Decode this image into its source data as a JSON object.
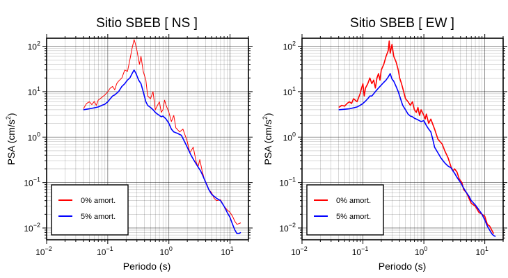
{
  "chart_data": [
    {
      "type": "line",
      "title": "Sitio SBEB [ NS ]",
      "xlabel": "Periodo (s)",
      "ylabel_main": "PSA (cm/s",
      "ylabel_sup": "2",
      "ylabel_tail": ")",
      "xscale": "log",
      "yscale": "log",
      "xlim": [
        0.01,
        20
      ],
      "ylim": [
        0.0055,
        150
      ],
      "grid": true,
      "legend_position": "bottom-left",
      "xticks": [
        {
          "v": 0.01,
          "base": "10",
          "exp": "−2"
        },
        {
          "v": 0.1,
          "base": "10",
          "exp": "−1"
        },
        {
          "v": 1,
          "base": "10",
          "exp": "0"
        },
        {
          "v": 10,
          "base": "10",
          "exp": "1"
        }
      ],
      "yticks": [
        {
          "v": 0.01,
          "base": "10",
          "exp": "−2"
        },
        {
          "v": 0.1,
          "base": "10",
          "exp": "−1"
        },
        {
          "v": 1,
          "base": "10",
          "exp": "0"
        },
        {
          "v": 10,
          "base": "10",
          "exp": "1"
        },
        {
          "v": 100,
          "base": "10",
          "exp": "2"
        }
      ],
      "series": [
        {
          "name": "0% amort.",
          "color": "#ff0000",
          "width": 1.0,
          "points": [
            [
              0.04,
              4.2
            ],
            [
              0.045,
              5.5
            ],
            [
              0.05,
              6
            ],
            [
              0.055,
              5.2
            ],
            [
              0.06,
              6.1
            ],
            [
              0.065,
              5
            ],
            [
              0.07,
              6.5
            ],
            [
              0.08,
              7.5
            ],
            [
              0.09,
              8.5
            ],
            [
              0.1,
              10
            ],
            [
              0.11,
              12
            ],
            [
              0.12,
              13
            ],
            [
              0.13,
              11
            ],
            [
              0.14,
              15
            ],
            [
              0.15,
              17
            ],
            [
              0.17,
              20
            ],
            [
              0.19,
              30
            ],
            [
              0.21,
              28
            ],
            [
              0.23,
              50
            ],
            [
              0.25,
              90
            ],
            [
              0.27,
              140
            ],
            [
              0.28,
              120
            ],
            [
              0.3,
              80
            ],
            [
              0.33,
              40
            ],
            [
              0.35,
              60
            ],
            [
              0.38,
              28
            ],
            [
              0.42,
              18
            ],
            [
              0.45,
              8
            ],
            [
              0.5,
              7
            ],
            [
              0.55,
              10
            ],
            [
              0.6,
              4
            ],
            [
              0.65,
              5
            ],
            [
              0.7,
              6
            ],
            [
              0.75,
              3.5
            ],
            [
              0.8,
              4
            ],
            [
              0.85,
              6.5
            ],
            [
              0.9,
              5
            ],
            [
              1,
              3.5
            ],
            [
              1.1,
              2.2
            ],
            [
              1.2,
              3
            ],
            [
              1.3,
              1.6
            ],
            [
              1.5,
              1.3
            ],
            [
              1.7,
              1.5
            ],
            [
              2,
              0.8
            ],
            [
              2.2,
              0.45
            ],
            [
              2.5,
              0.6
            ],
            [
              2.8,
              0.28
            ],
            [
              3,
              0.22
            ],
            [
              3.2,
              0.32
            ],
            [
              3.5,
              0.18
            ],
            [
              3.8,
              0.12
            ],
            [
              4.2,
              0.09
            ],
            [
              4.5,
              0.07
            ],
            [
              5,
              0.06
            ],
            [
              5.5,
              0.045
            ],
            [
              6,
              0.04
            ],
            [
              7,
              0.042
            ],
            [
              8,
              0.03
            ],
            [
              9,
              0.025
            ],
            [
              10,
              0.022
            ],
            [
              11,
              0.018
            ],
            [
              12,
              0.014
            ],
            [
              13,
              0.012
            ],
            [
              15,
              0.013
            ]
          ]
        },
        {
          "name": "5% amort.",
          "color": "#0000ff",
          "width": 1.6,
          "points": [
            [
              0.04,
              4
            ],
            [
              0.05,
              4.2
            ],
            [
              0.06,
              4.4
            ],
            [
              0.07,
              4.6
            ],
            [
              0.08,
              5
            ],
            [
              0.09,
              5.3
            ],
            [
              0.1,
              6
            ],
            [
              0.11,
              7
            ],
            [
              0.12,
              8
            ],
            [
              0.13,
              8.5
            ],
            [
              0.15,
              10
            ],
            [
              0.17,
              13
            ],
            [
              0.19,
              15
            ],
            [
              0.21,
              18
            ],
            [
              0.23,
              20
            ],
            [
              0.25,
              25
            ],
            [
              0.27,
              30
            ],
            [
              0.29,
              25
            ],
            [
              0.32,
              18
            ],
            [
              0.35,
              15
            ],
            [
              0.38,
              10
            ],
            [
              0.42,
              6
            ],
            [
              0.45,
              5
            ],
            [
              0.5,
              4.5
            ],
            [
              0.55,
              4
            ],
            [
              0.6,
              3.5
            ],
            [
              0.65,
              3.2
            ],
            [
              0.7,
              3
            ],
            [
              0.75,
              2.8
            ],
            [
              0.8,
              2.9
            ],
            [
              0.9,
              2.5
            ],
            [
              1,
              2
            ],
            [
              1.1,
              1.5
            ],
            [
              1.2,
              1.3
            ],
            [
              1.4,
              1.2
            ],
            [
              1.6,
              1.1
            ],
            [
              1.8,
              0.8
            ],
            [
              2,
              0.6
            ],
            [
              2.3,
              0.4
            ],
            [
              2.6,
              0.3
            ],
            [
              3,
              0.22
            ],
            [
              3.3,
              0.18
            ],
            [
              3.6,
              0.14
            ],
            [
              4,
              0.1
            ],
            [
              4.5,
              0.07
            ],
            [
              5,
              0.055
            ],
            [
              6,
              0.045
            ],
            [
              7,
              0.04
            ],
            [
              8,
              0.03
            ],
            [
              9,
              0.022
            ],
            [
              10,
              0.017
            ],
            [
              11,
              0.012
            ],
            [
              12,
              0.009
            ],
            [
              13,
              0.0075
            ],
            [
              14,
              0.0075
            ],
            [
              15,
              0.008
            ]
          ]
        }
      ]
    },
    {
      "type": "line",
      "title": "Sitio SBEB [ EW ]",
      "xlabel": "Periodo (s)",
      "ylabel_main": "PSA (cm/s",
      "ylabel_sup": "2",
      "ylabel_tail": ")",
      "xscale": "log",
      "yscale": "log",
      "xlim": [
        0.01,
        20
      ],
      "ylim": [
        0.0055,
        150
      ],
      "grid": true,
      "legend_position": "bottom-left",
      "xticks": [
        {
          "v": 0.01,
          "base": "10",
          "exp": "−2"
        },
        {
          "v": 0.1,
          "base": "10",
          "exp": "−1"
        },
        {
          "v": 1,
          "base": "10",
          "exp": "0"
        },
        {
          "v": 10,
          "base": "10",
          "exp": "1"
        }
      ],
      "yticks": [
        {
          "v": 0.01,
          "base": "10",
          "exp": "−2"
        },
        {
          "v": 0.1,
          "base": "10",
          "exp": "−1"
        },
        {
          "v": 1,
          "base": "10",
          "exp": "0"
        },
        {
          "v": 10,
          "base": "10",
          "exp": "1"
        },
        {
          "v": 100,
          "base": "10",
          "exp": "2"
        }
      ],
      "series": [
        {
          "name": "0% amort.",
          "color": "#ff0000",
          "width": 1.6,
          "points": [
            [
              0.04,
              4.5
            ],
            [
              0.045,
              5
            ],
            [
              0.05,
              4.8
            ],
            [
              0.055,
              5.5
            ],
            [
              0.06,
              6
            ],
            [
              0.065,
              5.5
            ],
            [
              0.07,
              7
            ],
            [
              0.08,
              6
            ],
            [
              0.09,
              9
            ],
            [
              0.095,
              12
            ],
            [
              0.1,
              15
            ],
            [
              0.105,
              8
            ],
            [
              0.11,
              12
            ],
            [
              0.12,
              15
            ],
            [
              0.13,
              20
            ],
            [
              0.14,
              15
            ],
            [
              0.15,
              18
            ],
            [
              0.16,
              12
            ],
            [
              0.17,
              20
            ],
            [
              0.18,
              25
            ],
            [
              0.19,
              18
            ],
            [
              0.2,
              30
            ],
            [
              0.22,
              40
            ],
            [
              0.24,
              60
            ],
            [
              0.26,
              80
            ],
            [
              0.27,
              130
            ],
            [
              0.28,
              70
            ],
            [
              0.3,
              110
            ],
            [
              0.32,
              60
            ],
            [
              0.35,
              45
            ],
            [
              0.38,
              30
            ],
            [
              0.4,
              20
            ],
            [
              0.43,
              15
            ],
            [
              0.45,
              12
            ],
            [
              0.5,
              7
            ],
            [
              0.55,
              6
            ],
            [
              0.6,
              5
            ],
            [
              0.65,
              6
            ],
            [
              0.7,
              4
            ],
            [
              0.75,
              3.5
            ],
            [
              0.8,
              4.5
            ],
            [
              0.85,
              3
            ],
            [
              0.9,
              4
            ],
            [
              1,
              3
            ],
            [
              1.05,
              2.5
            ],
            [
              1.1,
              3.2
            ],
            [
              1.2,
              2
            ],
            [
              1.3,
              2.5
            ],
            [
              1.5,
              1.5
            ],
            [
              1.7,
              0.9
            ],
            [
              2,
              0.7
            ],
            [
              2.2,
              0.5
            ],
            [
              2.5,
              0.35
            ],
            [
              2.8,
              0.22
            ],
            [
              3,
              0.18
            ],
            [
              3.2,
              0.2
            ],
            [
              3.5,
              0.17
            ],
            [
              3.8,
              0.12
            ],
            [
              4.2,
              0.1
            ],
            [
              4.5,
              0.07
            ],
            [
              5,
              0.06
            ],
            [
              5.5,
              0.045
            ],
            [
              6,
              0.035
            ],
            [
              7,
              0.03
            ],
            [
              8,
              0.022
            ],
            [
              9,
              0.02
            ],
            [
              10,
              0.018
            ],
            [
              11,
              0.012
            ],
            [
              12,
              0.011
            ],
            [
              13,
              0.009
            ],
            [
              14,
              0.0075
            ]
          ]
        },
        {
          "name": "5% amort.",
          "color": "#0000ff",
          "width": 1.6,
          "points": [
            [
              0.04,
              4
            ],
            [
              0.05,
              4.1
            ],
            [
              0.06,
              4.2
            ],
            [
              0.07,
              4.4
            ],
            [
              0.08,
              4.6
            ],
            [
              0.09,
              5
            ],
            [
              0.1,
              5.5
            ],
            [
              0.11,
              6.2
            ],
            [
              0.12,
              7
            ],
            [
              0.13,
              8
            ],
            [
              0.14,
              8
            ],
            [
              0.15,
              9
            ],
            [
              0.16,
              10
            ],
            [
              0.17,
              11
            ],
            [
              0.18,
              12
            ],
            [
              0.2,
              14
            ],
            [
              0.22,
              16
            ],
            [
              0.24,
              18
            ],
            [
              0.26,
              21
            ],
            [
              0.28,
              25
            ],
            [
              0.3,
              19
            ],
            [
              0.32,
              17
            ],
            [
              0.35,
              13
            ],
            [
              0.38,
              10
            ],
            [
              0.4,
              8
            ],
            [
              0.45,
              5
            ],
            [
              0.5,
              4
            ],
            [
              0.55,
              3.2
            ],
            [
              0.6,
              2.9
            ],
            [
              0.65,
              2.8
            ],
            [
              0.7,
              2.6
            ],
            [
              0.8,
              2.4
            ],
            [
              0.9,
              2.2
            ],
            [
              1,
              2.3
            ],
            [
              1.1,
              1.8
            ],
            [
              1.2,
              1.5
            ],
            [
              1.3,
              1.3
            ],
            [
              1.4,
              0.9
            ],
            [
              1.5,
              0.6
            ],
            [
              1.7,
              0.45
            ],
            [
              1.9,
              0.35
            ],
            [
              2.2,
              0.27
            ],
            [
              2.5,
              0.23
            ],
            [
              2.8,
              0.21
            ],
            [
              3,
              0.18
            ],
            [
              3.2,
              0.16
            ],
            [
              3.5,
              0.13
            ],
            [
              3.8,
              0.11
            ],
            [
              4,
              0.1
            ],
            [
              4.5,
              0.075
            ],
            [
              5,
              0.06
            ],
            [
              5.5,
              0.05
            ],
            [
              6,
              0.04
            ],
            [
              7,
              0.032
            ],
            [
              8,
              0.025
            ],
            [
              9,
              0.02
            ],
            [
              10,
              0.015
            ],
            [
              11,
              0.011
            ],
            [
              12,
              0.009
            ],
            [
              13,
              0.0075
            ],
            [
              14,
              0.0068
            ],
            [
              15,
              0.0065
            ]
          ]
        }
      ]
    }
  ]
}
